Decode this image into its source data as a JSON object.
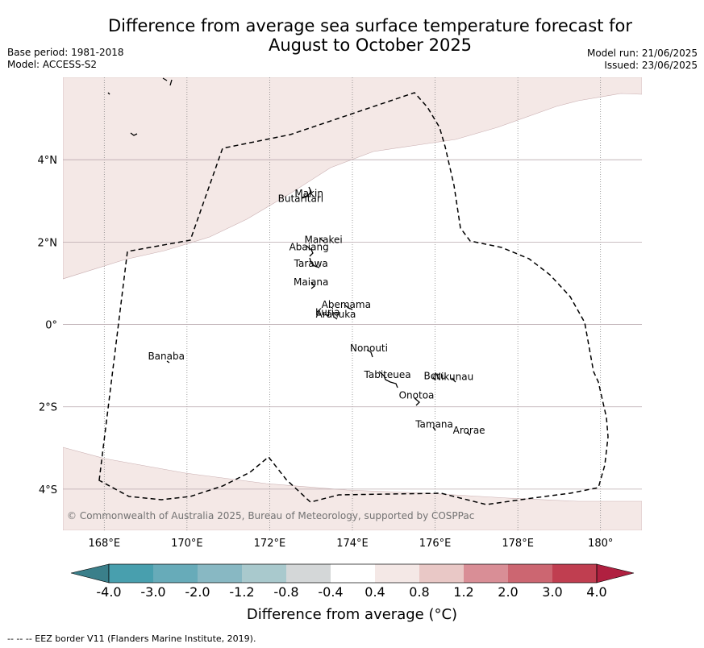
{
  "title_line1": "Difference from average sea surface temperature forecast for",
  "title_line2": "August to October 2025",
  "base_period": "Base period: 1981-2018",
  "model": "Model: ACCESS-S2",
  "model_run": "Model run: 21/06/2025",
  "issued": "Issued: 23/06/2025",
  "copyright": "© Commonwealth of Australia 2025, Bureau of Meteorology, supported by COSPPac",
  "footnote": "-- -- -- EEZ border V11 (Flanders Marine Institute, 2019).",
  "colorbar_label": "Difference from average (°C)",
  "map": {
    "lon_range": [
      167,
      181
    ],
    "lat_range": [
      -5,
      6
    ],
    "lon_ticks": [
      {
        "value": 168,
        "label": "168°E"
      },
      {
        "value": 170,
        "label": "170°E"
      },
      {
        "value": 172,
        "label": "172°E"
      },
      {
        "value": 174,
        "label": "174°E"
      },
      {
        "value": 176,
        "label": "176°E"
      },
      {
        "value": 178,
        "label": "178°E"
      },
      {
        "value": 180,
        "label": "180°"
      }
    ],
    "lat_ticks": [
      {
        "value": 4,
        "label": "4°N"
      },
      {
        "value": 2,
        "label": "2°N"
      },
      {
        "value": 0,
        "label": "0°"
      },
      {
        "value": -2,
        "label": "2°S"
      },
      {
        "value": -4,
        "label": "4°S"
      }
    ],
    "colors": {
      "anomaly_0_4_to_0_8": "#f4e8e6",
      "neutral": "#ffffff",
      "grid": "#b9a9ae",
      "eez": "#000000"
    },
    "islands": [
      {
        "name": "Makin",
        "lon": 172.95,
        "lat": 3.1
      },
      {
        "name": "Butaritari",
        "lon": 172.75,
        "lat": 2.98
      },
      {
        "name": "Marakei",
        "lon": 173.3,
        "lat": 1.98
      },
      {
        "name": "Abaiang",
        "lon": 172.95,
        "lat": 1.8
      },
      {
        "name": "Tarawa",
        "lon": 173.0,
        "lat": 1.4
      },
      {
        "name": "Maiana",
        "lon": 173.0,
        "lat": 0.95
      },
      {
        "name": "Abemama",
        "lon": 173.85,
        "lat": 0.4
      },
      {
        "name": "Kuria",
        "lon": 173.4,
        "lat": 0.22
      },
      {
        "name": "Aranuka",
        "lon": 173.6,
        "lat": 0.17
      },
      {
        "name": "Nonouti",
        "lon": 174.4,
        "lat": -0.65
      },
      {
        "name": "Banaba",
        "lon": 169.5,
        "lat": -0.85
      },
      {
        "name": "Tabiteuea",
        "lon": 174.85,
        "lat": -1.3
      },
      {
        "name": "Beru",
        "lon": 176.0,
        "lat": -1.33
      },
      {
        "name": "Nikunau",
        "lon": 176.45,
        "lat": -1.35
      },
      {
        "name": "Onotoa",
        "lon": 175.55,
        "lat": -1.8
      },
      {
        "name": "Tamana",
        "lon": 175.98,
        "lat": -2.5
      },
      {
        "name": "Arorae",
        "lon": 176.82,
        "lat": -2.65
      }
    ]
  },
  "colorbar": {
    "colors": [
      "#3a7f8a",
      "#489fae",
      "#67abb9",
      "#88b8c3",
      "#a9c9cd",
      "#d4d7d8",
      "#ffffff",
      "#f4e8e6",
      "#e9c8c6",
      "#d98e96",
      "#cc6671",
      "#c03e50",
      "#b02040"
    ],
    "ticks": [
      "-4.0",
      "-3.0",
      "-2.0",
      "-1.2",
      "-0.8",
      "-0.4",
      "0.4",
      "0.8",
      "1.2",
      "2.0",
      "3.0",
      "4.0"
    ]
  }
}
